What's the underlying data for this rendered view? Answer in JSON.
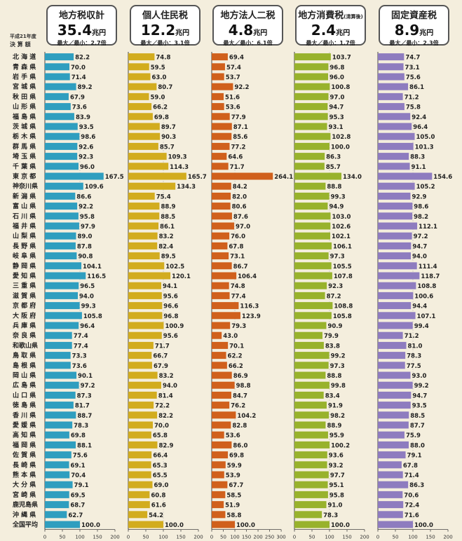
{
  "row_header": {
    "line1": "平成21年度",
    "line2": "決 算 額"
  },
  "prefectures": [
    "北 海 道",
    "青 森 県",
    "岩 手 県",
    "宮 城 県",
    "秋 田 県",
    "山 形 県",
    "福 島 県",
    "茨 城 県",
    "栃 木 県",
    "群 馬 県",
    "埼 玉 県",
    "千 葉 県",
    "東 京 都",
    "神奈川県",
    "新 潟 県",
    "富 山 県",
    "石 川 県",
    "福 井 県",
    "山 梨 県",
    "長 野 県",
    "岐 阜 県",
    "静 岡 県",
    "愛 知 県",
    "三 重 県",
    "滋 賀 県",
    "京 都 府",
    "大 阪 府",
    "兵 庫 県",
    "奈 良 県",
    "和歌山県",
    "鳥 取 県",
    "島 根 県",
    "岡 山 県",
    "広 島 県",
    "山 口 県",
    "徳 島 県",
    "香 川 県",
    "愛 媛 県",
    "高 知 県",
    "福 岡 県",
    "佐 賀 県",
    "長 崎 県",
    "熊 本 県",
    "大 分 県",
    "宮 崎 県",
    "鹿児島県",
    "沖 縄 県",
    "全国平均"
  ],
  "chart_data": [
    {
      "type": "bar",
      "title": "地方税収計",
      "total": "35.4",
      "unit": "兆円",
      "ratio": "最大／最小：2.7倍",
      "color": "#2f9ebf",
      "xlim": [
        0,
        200
      ],
      "ticks": [
        "0",
        "50",
        "100",
        "150",
        "200"
      ],
      "values": [
        82.2,
        70.0,
        71.4,
        89.2,
        67.9,
        73.6,
        83.9,
        93.5,
        98.6,
        92.6,
        92.3,
        96.0,
        167.5,
        109.6,
        86.6,
        92.2,
        95.8,
        97.9,
        89.0,
        87.8,
        90.8,
        104.1,
        116.5,
        96.5,
        94.0,
        99.3,
        105.8,
        96.4,
        77.4,
        77.4,
        73.3,
        73.6,
        90.1,
        97.2,
        87.3,
        81.7,
        88.7,
        78.3,
        69.8,
        88.1,
        75.6,
        69.1,
        70.4,
        79.1,
        69.5,
        68.7,
        62.7,
        100.0
      ],
      "labels": [
        "82.2",
        "70.0",
        "71.4",
        "89.2",
        "67.9",
        "73.6",
        "83.9",
        "93.5",
        "98.6",
        "92.6",
        "92.3",
        "96.0",
        "167.5",
        "109.6",
        "86.6",
        "92.2",
        "95.8",
        "97.9",
        "89.0",
        "87.8",
        "90.8",
        "104.1",
        "116.5",
        "96.5",
        "94.0",
        "99.3",
        "105.8",
        "96.4",
        "77.4",
        "77.4",
        "73.3",
        "73.6",
        "90.1",
        "97.2",
        "87.3",
        "81.7",
        "88.7",
        "78.3",
        "69.8",
        "88.1",
        "75.6",
        "69.1",
        "70.4",
        "79.1",
        "69.5",
        "68.7",
        "62.7",
        "100.0"
      ]
    },
    {
      "type": "bar",
      "title": "個人住民税",
      "total": "12.2",
      "unit": "兆円",
      "ratio": "最大／最小：3.1倍",
      "color": "#d2ac1e",
      "xlim": [
        0,
        200
      ],
      "ticks": [
        "0",
        "50",
        "100",
        "150",
        "200"
      ],
      "values": [
        74.8,
        59.5,
        63.0,
        80.7,
        59.0,
        66.2,
        69.8,
        89.7,
        90.3,
        85.7,
        109.3,
        114.3,
        165.7,
        134.3,
        75.4,
        88.9,
        88.5,
        86.1,
        83.2,
        82.4,
        89.5,
        102.5,
        120.1,
        94.1,
        95.6,
        96.6,
        96.8,
        100.9,
        95.6,
        71.7,
        66.7,
        67.9,
        83.2,
        94.0,
        81.4,
        72.2,
        82.2,
        70.0,
        65.8,
        82.9,
        66.4,
        65.3,
        65.5,
        69.0,
        60.8,
        61.6,
        54.2,
        100.0
      ],
      "labels": [
        "74.8",
        "59.5",
        "63.0",
        "80.7",
        "59.0",
        "66.2",
        "69.8",
        "89.7",
        "90.3",
        "85.7",
        "109.3",
        "114.3",
        "165.7",
        "134.3",
        "75.4",
        "88.9",
        "88.5",
        "86.1",
        "83.2",
        "82.4",
        "89.5",
        "102.5",
        "120.1",
        "94.1",
        "95.6",
        "96.6",
        "96.8",
        "100.9",
        "95.6",
        "71.7",
        "66.7",
        "67.9",
        "83.2",
        "94.0",
        "81.4",
        "72.2",
        "82.2",
        "70.0",
        "65.8",
        "82.9",
        "66.4",
        "65.3",
        "65.5",
        "69.0",
        "60.8",
        "61.6",
        "54.2",
        "100.0"
      ]
    },
    {
      "type": "bar",
      "title": "地方法人二税",
      "total": "4.8",
      "unit": "兆円",
      "ratio": "最大／最小：6.1倍",
      "color": "#d0601c",
      "xlim": [
        0,
        300
      ],
      "ticks": [
        "0",
        "50",
        "100",
        "150",
        "200",
        "250",
        "300"
      ],
      "values": [
        69.4,
        57.4,
        53.7,
        92.2,
        51.6,
        53.6,
        77.9,
        87.1,
        85.6,
        77.2,
        64.6,
        71.7,
        264.1,
        84.2,
        82.0,
        80.6,
        87.6,
        97.0,
        76.0,
        67.8,
        73.1,
        86.7,
        106.4,
        74.8,
        77.4,
        116.3,
        123.9,
        79.3,
        43.0,
        70.1,
        62.2,
        66.2,
        86.9,
        98.8,
        84.7,
        76.2,
        104.2,
        82.8,
        53.6,
        86.0,
        69.8,
        59.9,
        53.9,
        67.7,
        58.5,
        51.9,
        58.8,
        100.0
      ],
      "labels": [
        "69.4",
        "57.4",
        "53.7",
        "92.2",
        "51.6",
        "53.6",
        "77.9",
        "87.1",
        "85.6",
        "77.2",
        "64.6",
        "71.7",
        "264.1",
        "84.2",
        "82.0",
        "80.6",
        "87.6",
        "97.0",
        "76.0",
        "67.8",
        "73.1",
        "86.7",
        "106.4",
        "74.8",
        "77.4",
        "116.3",
        "123.9",
        "79.3",
        "43.0",
        "70.1",
        "62.2",
        "66.2",
        "86.9",
        "98.8",
        "84.7",
        "76.2",
        "104.2",
        "82.8",
        "53.6",
        "86.0",
        "69.8",
        "59.9",
        "53.9",
        "67.7",
        "58.5",
        "51.9",
        "58.8",
        "100.0"
      ]
    },
    {
      "type": "bar",
      "title": "地方消費税",
      "title_note": "(清算後)",
      "total": "2.4",
      "unit": "兆円",
      "ratio": "最大／最小：1.7倍",
      "color": "#98b22c",
      "xlim": [
        0,
        200
      ],
      "ticks": [
        "0",
        "50",
        "100",
        "150",
        "200"
      ],
      "values": [
        103.7,
        96.8,
        96.0,
        100.8,
        97.0,
        94.7,
        95.3,
        93.1,
        102.8,
        100.0,
        86.3,
        85.7,
        134.0,
        88.8,
        99.3,
        94.9,
        103.0,
        102.6,
        102.1,
        106.1,
        97.3,
        105.5,
        107.8,
        92.3,
        87.2,
        108.8,
        105.8,
        90.9,
        79.9,
        83.8,
        99.2,
        97.3,
        88.8,
        99.8,
        83.4,
        91.9,
        98.2,
        88.9,
        95.9,
        100.2,
        93.6,
        93.2,
        97.7,
        95.1,
        95.8,
        91.0,
        78.3,
        100.0
      ],
      "labels": [
        "103.7",
        "96.8",
        "96.0",
        "100.8",
        "97.0",
        "94.7",
        "95.3",
        "93.1",
        "102.8",
        "100.0",
        "86.3",
        "85.7",
        "134.0",
        "88.8",
        "99.3",
        "94.9",
        "103.0",
        "102.6",
        "102.1",
        "106.1",
        "97.3",
        "105.5",
        "107.8",
        "92.3",
        "87.2",
        "108.8",
        "105.8",
        "90.9",
        "79.9",
        "83.8",
        "99.2",
        "97.3",
        "88.8",
        "99.8",
        "83.4",
        "91.9",
        "98.2",
        "88.9",
        "95.9",
        "100.2",
        "93.6",
        "93.2",
        "97.7",
        "95.1",
        "95.8",
        "91.0",
        "78.3",
        "100.0"
      ]
    },
    {
      "type": "bar",
      "title": "固定資産税",
      "total": "8.9",
      "unit": "兆円",
      "ratio": "最大／最小：2.3倍",
      "color": "#8e7cbf",
      "xlim": [
        0,
        200
      ],
      "ticks": [
        "0",
        "50",
        "100",
        "150",
        "200"
      ],
      "values": [
        74.7,
        73.1,
        75.6,
        86.1,
        71.2,
        75.8,
        92.4,
        96.4,
        105.0,
        101.3,
        88.3,
        91.1,
        154.6,
        105.2,
        92.9,
        98.6,
        98.2,
        112.1,
        97.2,
        94.7,
        94.0,
        111.4,
        118.7,
        108.8,
        100.6,
        94.4,
        107.1,
        99.4,
        71.2,
        81.0,
        78.3,
        77.5,
        93.0,
        99.2,
        94.7,
        93.5,
        88.5,
        87.7,
        75.9,
        88.0,
        79.1,
        67.8,
        71.4,
        86.3,
        70.6,
        72.4,
        71.6,
        100.0
      ],
      "labels": [
        "74.7",
        "73.1",
        "75.6",
        "86.1",
        "71.2",
        "75.8",
        "92.4",
        "96.4",
        "105.0",
        "101.3",
        "88.3",
        "91.1",
        "154.6",
        "105.2",
        "92.9",
        "98.6",
        "98.2",
        "112.1",
        "97.2",
        "94.7",
        "94.0",
        "111.4",
        "118.7",
        "108.8",
        "100.6",
        "94.4",
        "107.1",
        "99.4",
        "71.2",
        "81.0",
        "78.3",
        "77.5",
        "93.0",
        "99.2",
        "94.7",
        "93.5",
        "88.5",
        "87.7",
        "75.9",
        "88.0",
        "79.1",
        "67.8",
        "71.4",
        "86.3",
        "70.6",
        "72.4",
        "71.6",
        "100.0"
      ]
    }
  ]
}
